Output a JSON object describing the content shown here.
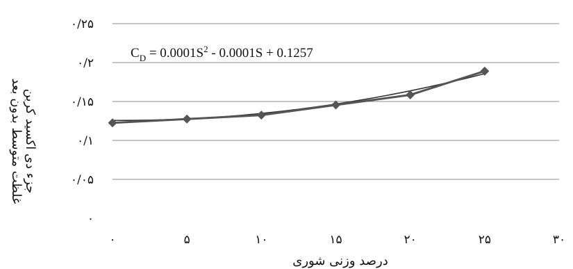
{
  "chart_data": {
    "type": "scatter",
    "title": "",
    "xlabel": "درصد وزنی شوری",
    "ylabel_line1": "غلظت متوسط بدون بعد",
    "ylabel_line2": "جزء دی اکسید کربن",
    "xlim": [
      0,
      30
    ],
    "ylim": [
      0,
      0.25
    ],
    "x_ticks": [
      0,
      5,
      10,
      15,
      20,
      25,
      30
    ],
    "x_tick_labels": [
      "۰",
      "۵",
      "۱۰",
      "۱۵",
      "۲۰",
      "۲۵",
      "۳۰"
    ],
    "y_ticks": [
      0,
      0.05,
      0.1,
      0.15,
      0.2,
      0.25
    ],
    "y_tick_labels": [
      "۰",
      "۰/۰۵",
      "۰/۱",
      "۰/۱۵",
      "۰/۲",
      "۰/۲۵"
    ],
    "grid": true,
    "series": [
      {
        "marker": "diamond",
        "color": "#555555",
        "x": [
          0,
          5,
          10,
          15,
          20,
          25
        ],
        "y": [
          0.1225,
          0.1275,
          0.1325,
          0.1455,
          0.1585,
          0.189
        ]
      }
    ],
    "trendline": {
      "type": "polynomial",
      "coefficients": [
        0.0001,
        -0.0001,
        0.1257
      ],
      "color": "#333333",
      "equation_text": {
        "prefix": "C",
        "subscript": "D",
        "mid": " = 0.0001S",
        "superscript": "2",
        "suffix": " - 0.0001S + 0.1257"
      }
    }
  }
}
